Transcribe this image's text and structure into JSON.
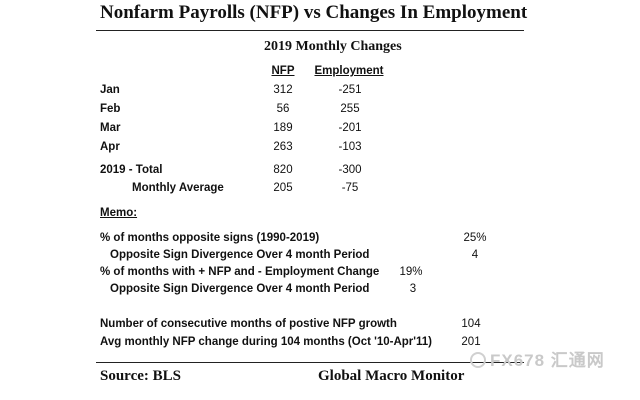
{
  "title": "Nonfarm Payrolls (NFP) vs Changes In Employment",
  "subtitle": "2019 Monthly Changes",
  "columns": {
    "nfp": "NFP",
    "employment": "Employment"
  },
  "months": [
    {
      "label": "Jan",
      "nfp": "312",
      "employment": "-251"
    },
    {
      "label": "Feb",
      "nfp": "56",
      "employment": "255"
    },
    {
      "label": "Mar",
      "nfp": "189",
      "employment": "-201"
    },
    {
      "label": "Apr",
      "nfp": "263",
      "employment": "-103"
    }
  ],
  "total": {
    "label": "2019 - Total",
    "nfp": "820",
    "employment": "-300"
  },
  "average": {
    "label": "Monthly Average",
    "nfp": "205",
    "employment": "-75"
  },
  "memo": {
    "heading": "Memo:",
    "rows": [
      {
        "label": "% of months opposite signs (1990-2019)",
        "value": "25%"
      },
      {
        "label": "Opposite Sign Divergence Over 4 month Period",
        "value": "4"
      },
      {
        "label": "% of months with + NFP and - Employment Change",
        "value": "19%"
      },
      {
        "label": "Opposite Sign Divergence Over 4 month Period",
        "value": "3"
      }
    ]
  },
  "extra": [
    {
      "label": "Number of consecutive months of postive NFP growth",
      "value": "104"
    },
    {
      "label": "Avg monthly NFP change during 104 months (Oct '10-Apr'11)",
      "value": "201"
    }
  ],
  "footer": {
    "source": "Source:  BLS",
    "brand": "Global Macro Monitor"
  },
  "watermark": "FX678 汇通网"
}
